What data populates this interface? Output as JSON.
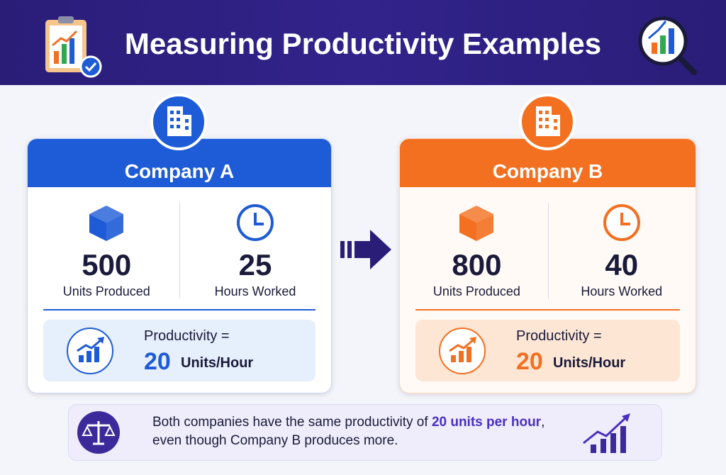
{
  "header": {
    "title": "Measuring Productivity Examples"
  },
  "companies": [
    {
      "name": "Company A",
      "units": 500,
      "units_label": "Units Produced",
      "hours": 25,
      "hours_label": "Hours Worked",
      "productivity_label": "Productivity =",
      "productivity_value": 20,
      "productivity_unit": "Units/Hour"
    },
    {
      "name": "Company B",
      "units": 800,
      "units_label": "Units Produced",
      "hours": 40,
      "hours_label": "Hours Worked",
      "productivity_label": "Productivity =",
      "productivity_value": 20,
      "productivity_unit": "Units/Hour"
    }
  ],
  "note": {
    "text_start": "Both companies have the same productivity of",
    "highlight": "20 units per hour",
    "text_end": ",",
    "line2": "even though Company B produces more."
  }
}
